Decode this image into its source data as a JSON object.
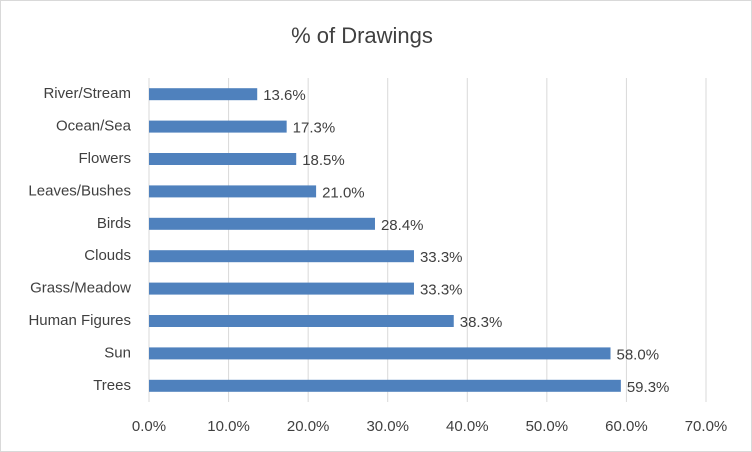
{
  "chart_data": {
    "type": "hbar",
    "title": "% of Drawings",
    "categories": [
      "River/Stream",
      "Ocean/Sea",
      "Flowers",
      "Leaves/Bushes",
      "Birds",
      "Clouds",
      "Grass/Meadow",
      "Human Figures",
      "Sun",
      "Trees"
    ],
    "values": [
      13.6,
      17.3,
      18.5,
      21.0,
      28.4,
      33.3,
      33.3,
      38.3,
      58.0,
      59.3
    ],
    "value_labels": [
      "13.6%",
      "17.3%",
      "18.5%",
      "21.0%",
      "28.4%",
      "33.3%",
      "33.3%",
      "38.3%",
      "58.0%",
      "59.3%"
    ],
    "color": "#4f81bd",
    "xlim": [
      0,
      70
    ],
    "xticks": [
      {
        "value": 0,
        "label": "0.0%"
      },
      {
        "value": 10,
        "label": "10.0%"
      },
      {
        "value": 20,
        "label": "20.0%"
      },
      {
        "value": 30,
        "label": "30.0%"
      },
      {
        "value": 40,
        "label": "40.0%"
      },
      {
        "value": 50,
        "label": "50.0%"
      },
      {
        "value": 60,
        "label": "60.0%"
      },
      {
        "value": 70,
        "label": "70.0%"
      }
    ],
    "grid": true
  }
}
